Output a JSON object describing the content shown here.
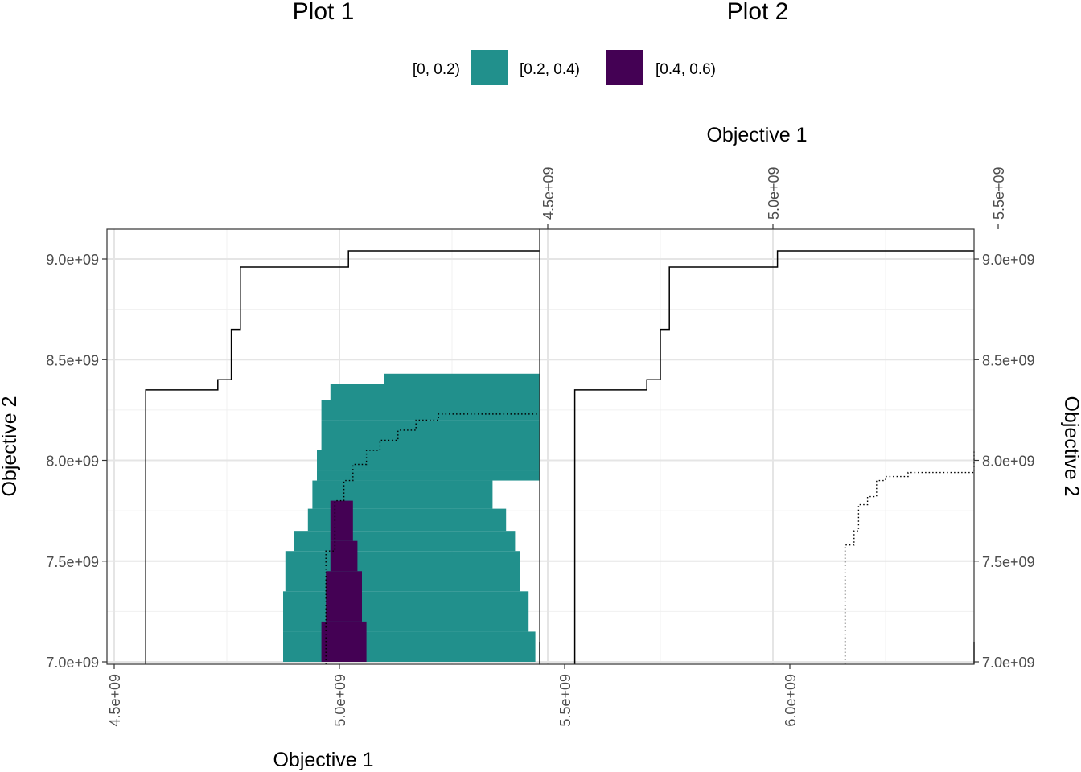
{
  "chart_data": [
    {
      "type": "area",
      "title": "Plot 1",
      "xlabel": "Objective 1",
      "ylabel": "Objective 2",
      "xlim": [
        4450000000.0,
        6400000000.0
      ],
      "ylim": [
        6990000000.0,
        9150000000.0
      ],
      "x_ticks": [
        4500000000.0,
        5000000000.0,
        5500000000.0,
        6000000000.0
      ],
      "x_tick_labels": [
        "4.5e+09",
        "5.0e+09",
        "5.5e+09",
        "6.0e+09"
      ],
      "y_ticks": [
        7000000000.0,
        7500000000.0,
        8000000000.0,
        8500000000.0,
        9000000000.0
      ],
      "y_tick_labels": [
        "7.0e+09",
        "7.5e+09",
        "8.0e+09",
        "8.5e+09",
        "9.0e+09"
      ],
      "legend": {
        "position": "top",
        "entries": [
          {
            "label": "[0, 0.2)",
            "color": "#ffffff"
          },
          {
            "label": "[0.2, 0.4)",
            "color": "#21908C"
          },
          {
            "label": "[0.4, 0.6)",
            "color": "#440154"
          }
        ]
      },
      "regions": [
        {
          "level": "[0.2, 0.4)",
          "color": "#21908C",
          "bands": [
            {
              "x0": 4875000000.0,
              "x1": 5435000000.0,
              "y0": 7000000000.0,
              "y1": 7150000000.0
            },
            {
              "x0": 4875000000.0,
              "x1": 5420000000.0,
              "y0": 7150000000.0,
              "y1": 7350000000.0
            },
            {
              "x0": 4880000000.0,
              "x1": 5400000000.0,
              "y0": 7350000000.0,
              "y1": 7550000000.0
            },
            {
              "x0": 4900000000.0,
              "x1": 5390000000.0,
              "y0": 7550000000.0,
              "y1": 7650000000.0
            },
            {
              "x0": 4930000000.0,
              "x1": 5370000000.0,
              "y0": 7650000000.0,
              "y1": 7760000000.0
            },
            {
              "x0": 4940000000.0,
              "x1": 5340000000.0,
              "y0": 7760000000.0,
              "y1": 7900000000.0
            },
            {
              "x0": 4950000000.0,
              "x1": 5520000000.0,
              "y0": 7900000000.0,
              "y1": 7950000000.0
            },
            {
              "x0": 4950000000.0,
              "x1": 6000000000.0,
              "y0": 7950000000.0,
              "y1": 8050000000.0
            },
            {
              "x0": 4960000000.0,
              "x1": 6400000000.0,
              "y0": 8050000000.0,
              "y1": 8200000000.0
            },
            {
              "x0": 4960000000.0,
              "x1": 6400000000.0,
              "y0": 8200000000.0,
              "y1": 8300000000.0
            },
            {
              "x0": 4980000000.0,
              "x1": 6400000000.0,
              "y0": 8300000000.0,
              "y1": 8380000000.0
            },
            {
              "x0": 5100000000.0,
              "x1": 6280000000.0,
              "y0": 8380000000.0,
              "y1": 8430000000.0
            }
          ]
        },
        {
          "level": "[0.4, 0.6)",
          "color": "#440154",
          "bands": [
            {
              "x0": 4960000000.0,
              "x1": 5060000000.0,
              "y0": 7000000000.0,
              "y1": 7200000000.0
            },
            {
              "x0": 4970000000.0,
              "x1": 5050000000.0,
              "y0": 7200000000.0,
              "y1": 7450000000.0
            },
            {
              "x0": 4980000000.0,
              "x1": 5040000000.0,
              "y0": 7450000000.0,
              "y1": 7600000000.0
            },
            {
              "x0": 4980000000.0,
              "x1": 5030000000.0,
              "y0": 7600000000.0,
              "y1": 7800000000.0
            }
          ]
        }
      ],
      "lines": [
        {
          "style": "solid",
          "points": [
            [
              4570000000.0,
              6990000000.0
            ],
            [
              4570000000.0,
              8350000000.0
            ],
            [
              4730000000.0,
              8350000000.0
            ],
            [
              4730000000.0,
              8400000000.0
            ],
            [
              4760000000.0,
              8400000000.0
            ],
            [
              4760000000.0,
              8650000000.0
            ],
            [
              4780000000.0,
              8650000000.0
            ],
            [
              4780000000.0,
              8960000000.0
            ],
            [
              5020000000.0,
              8960000000.0
            ],
            [
              5020000000.0,
              9040000000.0
            ],
            [
              6400000000.0,
              9040000000.0
            ]
          ]
        },
        {
          "style": "solid",
          "points": [
            [
              6280000000.0,
              6990000000.0
            ],
            [
              6280000000.0,
              7100000000.0
            ],
            [
              6400000000.0,
              7100000000.0
            ]
          ]
        },
        {
          "style": "dotted",
          "points": [
            [
              4970000000.0,
              6990000000.0
            ],
            [
              4970000000.0,
              7550000000.0
            ],
            [
              4990000000.0,
              7550000000.0
            ],
            [
              4990000000.0,
              7800000000.0
            ],
            [
              5010000000.0,
              7800000000.0
            ],
            [
              5010000000.0,
              7900000000.0
            ],
            [
              5030000000.0,
              7900000000.0
            ],
            [
              5030000000.0,
              7980000000.0
            ],
            [
              5060000000.0,
              7980000000.0
            ],
            [
              5060000000.0,
              8050000000.0
            ],
            [
              5090000000.0,
              8050000000.0
            ],
            [
              5090000000.0,
              8100000000.0
            ],
            [
              5130000000.0,
              8100000000.0
            ],
            [
              5130000000.0,
              8150000000.0
            ],
            [
              5170000000.0,
              8150000000.0
            ],
            [
              5170000000.0,
              8200000000.0
            ],
            [
              5220000000.0,
              8200000000.0
            ],
            [
              5220000000.0,
              8230000000.0
            ],
            [
              6400000000.0,
              8230000000.0
            ]
          ]
        }
      ]
    },
    {
      "type": "line",
      "title": "Plot 2",
      "xlabel": "Objective 1",
      "ylabel": "Objective 2",
      "xlim": [
        4450000000.0,
        6400000000.0
      ],
      "ylim": [
        6990000000.0,
        9150000000.0
      ],
      "x_ticks": [
        4500000000.0,
        5000000000.0,
        5500000000.0,
        6000000000.0
      ],
      "x_tick_labels": [
        "4.5e+09",
        "5.0e+09",
        "5.5e+09",
        "6.0e+09"
      ],
      "y_ticks": [
        7000000000.0,
        7500000000.0,
        8000000000.0,
        8500000000.0,
        9000000000.0
      ],
      "y_tick_labels": [
        "7.0e+09",
        "7.5e+09",
        "8.0e+09",
        "8.5e+09",
        "9.0e+09"
      ],
      "lines": [
        {
          "style": "solid",
          "points": [
            [
              4560000000.0,
              6990000000.0
            ],
            [
              4560000000.0,
              8350000000.0
            ],
            [
              4720000000.0,
              8350000000.0
            ],
            [
              4720000000.0,
              8400000000.0
            ],
            [
              4750000000.0,
              8400000000.0
            ],
            [
              4750000000.0,
              8650000000.0
            ],
            [
              4770000000.0,
              8650000000.0
            ],
            [
              4770000000.0,
              8960000000.0
            ],
            [
              5010000000.0,
              8960000000.0
            ],
            [
              5010000000.0,
              9040000000.0
            ],
            [
              6400000000.0,
              9040000000.0
            ]
          ]
        },
        {
          "style": "solid",
          "points": [
            [
              6280000000.0,
              6990000000.0
            ],
            [
              6280000000.0,
              7100000000.0
            ],
            [
              6400000000.0,
              7100000000.0
            ]
          ]
        },
        {
          "style": "dotted",
          "points": [
            [
              5160000000.0,
              6990000000.0
            ],
            [
              5160000000.0,
              7580000000.0
            ],
            [
              5180000000.0,
              7580000000.0
            ],
            [
              5180000000.0,
              7650000000.0
            ],
            [
              5190000000.0,
              7650000000.0
            ],
            [
              5190000000.0,
              7780000000.0
            ],
            [
              5210000000.0,
              7780000000.0
            ],
            [
              5210000000.0,
              7820000000.0
            ],
            [
              5230000000.0,
              7820000000.0
            ],
            [
              5230000000.0,
              7900000000.0
            ],
            [
              5250000000.0,
              7900000000.0
            ],
            [
              5250000000.0,
              7920000000.0
            ],
            [
              5300000000.0,
              7920000000.0
            ],
            [
              5300000000.0,
              7940000000.0
            ],
            [
              5450000000.0,
              7940000000.0
            ],
            [
              5450000000.0,
              7960000000.0
            ],
            [
              5500000000.0,
              7960000000.0
            ],
            [
              5500000000.0,
              7980000000.0
            ],
            [
              5600000000.0,
              7980000000.0
            ],
            [
              5600000000.0,
              7990000000.0
            ],
            [
              6000000000.0,
              7990000000.0
            ],
            [
              6000000000.0,
              8010000000.0
            ],
            [
              6280000000.0,
              8010000000.0
            ],
            [
              6280000000.0,
              8050000000.0
            ],
            [
              6400000000.0,
              8050000000.0
            ]
          ]
        }
      ]
    }
  ]
}
